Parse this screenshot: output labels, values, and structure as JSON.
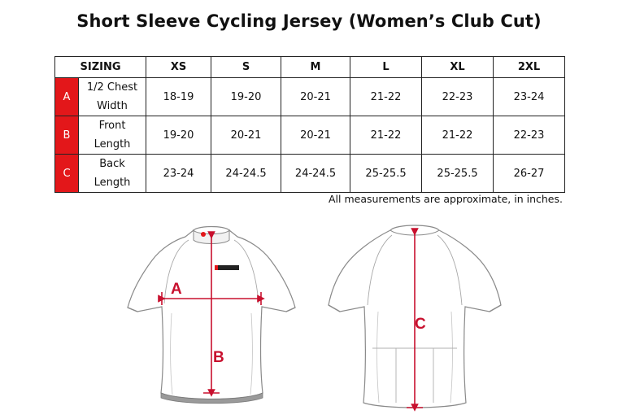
{
  "title": "Short Sleeve Cycling Jersey (Women’s Club Cut)",
  "table": {
    "header": [
      "SIZING",
      "XS",
      "S",
      "M",
      "L",
      "XL",
      "2XL"
    ],
    "rows": [
      {
        "letter": "A",
        "line1": "1/2 Chest",
        "line2": "Width",
        "values": [
          "18-19",
          "19-20",
          "20-21",
          "21-22",
          "22-23",
          "23-24"
        ]
      },
      {
        "letter": "B",
        "line1": "Front",
        "line2": "Length",
        "values": [
          "19-20",
          "20-21",
          "20-21",
          "21-22",
          "21-22",
          "22-23"
        ]
      },
      {
        "letter": "C",
        "line1": "Back",
        "line2": "Length",
        "values": [
          "23-24",
          "24-24.5",
          "24-24.5",
          "25-25.5",
          "25-25.5",
          "26-27"
        ]
      }
    ]
  },
  "note": "All measurements are approximate, in inches.",
  "diagram": {
    "front_labels": {
      "a": "A",
      "b": "B"
    },
    "back_labels": {
      "c": "C"
    },
    "accent": "#c8102e"
  }
}
